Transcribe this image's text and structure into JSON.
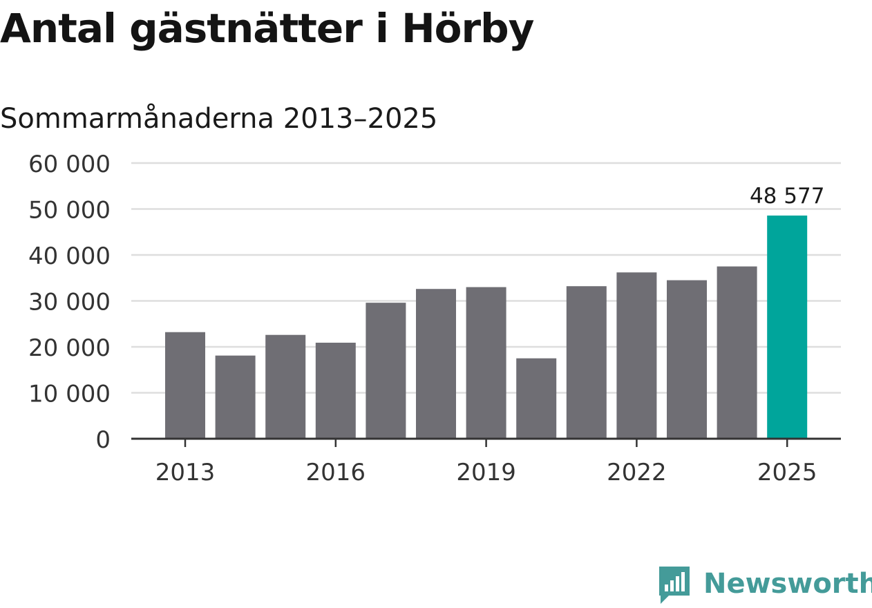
{
  "header": {
    "title": "Antal gästnätter i Hörby",
    "subtitle": "Sommarmånaderna 2013–2025"
  },
  "brand": {
    "name": "Newsworthy",
    "color": "#449b99"
  },
  "colors": {
    "bar": "#6f6e74",
    "highlight": "#00a59b",
    "grid": "#dedede",
    "axis": "#333333"
  },
  "chart_data": {
    "type": "bar",
    "categories": [
      "2013",
      "2014",
      "2015",
      "2016",
      "2017",
      "2018",
      "2019",
      "2020",
      "2021",
      "2022",
      "2023",
      "2024",
      "2025"
    ],
    "values": [
      23200,
      18100,
      22600,
      20900,
      29600,
      32600,
      33000,
      17500,
      33200,
      36200,
      34500,
      37500,
      48577
    ],
    "highlight_index": 12,
    "value_labels": [
      {
        "index": 12,
        "text": "48 577"
      }
    ],
    "title": "Antal gästnätter i Hörby",
    "subtitle": "Sommarmånaderna 2013–2025",
    "ylim": [
      0,
      60000
    ],
    "yticks": [
      0,
      10000,
      20000,
      30000,
      40000,
      50000,
      60000
    ],
    "ytick_labels": [
      "0",
      "10 000",
      "20 000",
      "30 000",
      "40 000",
      "50 000",
      "60 000"
    ],
    "xtick_labels": [
      "2013",
      "2016",
      "2019",
      "2022",
      "2025"
    ],
    "grid": true
  }
}
